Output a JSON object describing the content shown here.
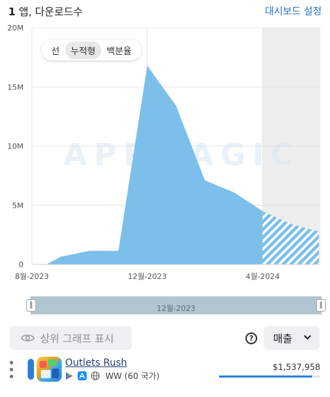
{
  "header": {
    "count": "1",
    "title_rest": " 앱, 다운로드수",
    "dashboard_link": "대시보드 설정"
  },
  "modes": {
    "line": "선",
    "cumulative": "누적형",
    "percent": "백분율",
    "selected": "cumulative"
  },
  "watermark": "APPMAGIC",
  "chart_data": {
    "type": "area",
    "y_ticks": [
      "20M",
      "15M",
      "10M",
      "5M",
      "0"
    ],
    "ylim": [
      0,
      20000000
    ],
    "x_ticks": [
      "8월-2023",
      "12월-2023",
      "4월-2024"
    ],
    "x_tick_index": [
      0,
      4,
      8
    ],
    "x_range": [
      0,
      10
    ],
    "series": [
      {
        "values": [
          [
            0.5,
            0
          ],
          [
            1,
            650000
          ],
          [
            2,
            1150000
          ],
          [
            3,
            1150000
          ],
          [
            4,
            16800000
          ],
          [
            5,
            13400000
          ],
          [
            6,
            7100000
          ],
          [
            7,
            6100000
          ],
          [
            8,
            4500000
          ],
          [
            9,
            3400000
          ]
        ],
        "projected_from": 8,
        "color": "#7cbfea"
      }
    ],
    "grid": true
  },
  "range": {
    "label": "12월-2023"
  },
  "controls": {
    "top_graph": "상위 그래프 표시",
    "metric": "매출",
    "help": "?"
  },
  "app": {
    "name": "Outlets Rush",
    "region": "WW (60 국가)",
    "revenue": "$1,537,958",
    "revenue_fraction": 0.92,
    "series_color": "#2b7fd6"
  },
  "icons": [
    "eye-icon",
    "help-icon",
    "chevron-down-icon",
    "google-play-icon",
    "app-store-icon",
    "globe-icon"
  ]
}
